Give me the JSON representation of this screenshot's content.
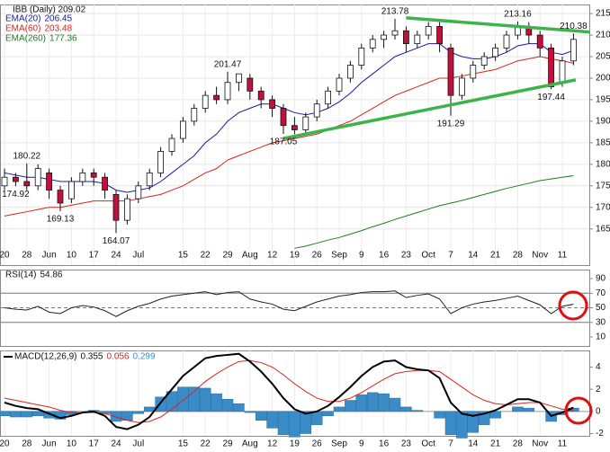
{
  "chart_data": [
    {
      "type": "candlestick",
      "title": "IBB (Daily) 209.02",
      "categories": [
        "20",
        null,
        "28",
        null,
        "Jun",
        null,
        "10",
        null,
        "17",
        null,
        "24",
        null,
        "Jul",
        null,
        null,
        null,
        "15",
        null,
        "22",
        null,
        "29",
        null,
        "Aug",
        null,
        "12",
        null,
        "19",
        null,
        "26",
        null,
        "Sep",
        null,
        "9",
        null,
        "16",
        null,
        "23",
        null,
        "Oct",
        null,
        "7",
        null,
        "14",
        null,
        "21",
        null,
        "28",
        null,
        "Nov",
        null,
        "11",
        null
      ],
      "open": [
        175,
        177,
        176,
        175,
        178,
        174,
        172,
        176,
        178,
        177,
        173,
        167,
        172,
        175,
        178,
        183,
        186,
        190,
        193,
        196,
        195,
        199,
        200,
        197,
        195,
        193,
        189,
        188,
        191,
        194,
        197,
        200,
        203,
        207,
        209,
        210,
        211,
        208,
        210,
        212,
        207,
        196,
        200,
        203,
        205,
        207,
        210,
        212,
        210,
        207,
        199,
        204
      ],
      "high": [
        179,
        178,
        180.22,
        180,
        179,
        175,
        177,
        179,
        179,
        178,
        174,
        173,
        176,
        179,
        184,
        187,
        191,
        194,
        197,
        198,
        201.47,
        201,
        201,
        198,
        196,
        194,
        191,
        192,
        195,
        198,
        201,
        204,
        208,
        210,
        211,
        213.78,
        212,
        211,
        213,
        213,
        208,
        201,
        204,
        206,
        208,
        211,
        213.16,
        213,
        211,
        208,
        205,
        210.38
      ],
      "low": [
        174,
        174.92,
        174,
        174,
        172,
        169.13,
        171,
        175,
        175,
        172,
        164.07,
        166,
        171,
        174,
        177,
        182,
        185,
        189,
        192,
        194,
        194,
        197,
        195,
        193,
        191,
        187.05,
        187,
        187,
        190,
        193,
        196,
        199,
        202,
        206,
        207,
        209,
        206,
        207,
        209,
        206,
        191.29,
        195,
        199,
        202,
        204,
        206,
        209,
        208,
        205,
        197.44,
        198,
        203
      ],
      "close": [
        177,
        176,
        175,
        179,
        174,
        171,
        176,
        178,
        177,
        174,
        167,
        172,
        175,
        178,
        183,
        186,
        190,
        193,
        196,
        195,
        199,
        201,
        197,
        195,
        193,
        189,
        188,
        191,
        194,
        197,
        200,
        203,
        207,
        209,
        210,
        211,
        208,
        210,
        212,
        208,
        196,
        200,
        203,
        205,
        207,
        210,
        212,
        210,
        207,
        198,
        204,
        209
      ],
      "up_color": "#ffffff",
      "down_color": "#c0103c",
      "series": [
        {
          "name": "EMA(20)",
          "color": "#1a1a9c",
          "values": [
            178,
            177.5,
            177,
            177,
            176.5,
            176,
            176,
            176,
            176,
            175.5,
            174,
            173.5,
            174,
            174.5,
            176,
            178,
            180,
            182,
            185,
            187,
            190,
            192,
            193,
            194,
            194,
            193,
            192,
            191.5,
            192,
            193,
            194.5,
            196.5,
            199,
            201,
            203,
            205,
            206,
            207,
            208,
            208,
            206,
            205,
            204.5,
            204.5,
            205,
            206,
            207.5,
            208,
            208,
            206,
            205.5,
            206.45
          ]
        },
        {
          "name": "EMA(60)",
          "color": "#e0201c",
          "values": [
            168,
            168.5,
            169,
            169.5,
            170,
            170,
            170.5,
            171,
            171.5,
            171.5,
            171.5,
            171.5,
            172,
            172.5,
            173,
            174,
            175,
            176.5,
            178,
            179,
            181,
            182,
            183,
            184,
            185,
            185.5,
            186,
            186.5,
            187,
            188,
            189,
            190,
            191.5,
            193,
            194.5,
            196,
            197,
            198,
            199,
            200,
            200,
            200.5,
            201,
            201.5,
            202,
            203,
            204,
            204.5,
            205,
            204.5,
            204,
            203.48
          ]
        },
        {
          "name": "EMA(260)",
          "color": "#1e7d1e",
          "values": [
            null,
            null,
            null,
            null,
            null,
            null,
            null,
            null,
            null,
            null,
            null,
            null,
            null,
            null,
            null,
            null,
            null,
            null,
            null,
            null,
            null,
            null,
            null,
            null,
            null,
            null,
            160.5,
            161,
            161.7,
            162.4,
            163,
            163.8,
            164.6,
            165.5,
            166.3,
            167.2,
            168,
            168.8,
            169.6,
            170.4,
            171,
            171.6,
            172.3,
            173,
            173.7,
            174.4,
            175,
            175.6,
            176.2,
            176.6,
            177,
            177.36
          ]
        }
      ],
      "annotations": [
        {
          "index": 1,
          "value": 174.92
        },
        {
          "index": 2,
          "value": 180.22
        },
        {
          "index": 5,
          "value": 169.13
        },
        {
          "index": 10,
          "value": 164.07
        },
        {
          "index": 20,
          "value": 201.47
        },
        {
          "index": 25,
          "value": 187.05
        },
        {
          "index": 35,
          "value": 213.78
        },
        {
          "index": 40,
          "value": 191.29
        },
        {
          "index": 46,
          "value": 213.16
        },
        {
          "index": 49,
          "value": 197.44
        },
        {
          "index": 51,
          "value": 210.38
        }
      ],
      "trendlines": [
        {
          "color": "#3cb44b",
          "x": [
            25,
            51.2
          ],
          "y": [
            186,
            199.6
          ]
        },
        {
          "color": "#3cb44b",
          "x": [
            36,
            53
          ],
          "y": [
            214,
            210.6
          ]
        }
      ],
      "ylim": [
        156.6,
        217.1
      ],
      "yticks": [
        165,
        170,
        175,
        180,
        185,
        190,
        195,
        200,
        205,
        210,
        215
      ],
      "grid": true
    },
    {
      "type": "line",
      "series": [
        {
          "name": "RSI(14)",
          "color": "#222222",
          "values": [
            50,
            48,
            47,
            52,
            44,
            42,
            50,
            53,
            51,
            46,
            38,
            46,
            52,
            56,
            62,
            66,
            68,
            70,
            72,
            68,
            71,
            72,
            62,
            58,
            55,
            48,
            46,
            52,
            58,
            62,
            66,
            68,
            71,
            72,
            72,
            73,
            64,
            67,
            69,
            62,
            42,
            50,
            55,
            58,
            60,
            63,
            66,
            60,
            54,
            42,
            52,
            54.86
          ]
        }
      ],
      "levels": [
        30,
        50,
        70
      ],
      "ylim": [
        -2.3,
        102.3
      ],
      "yticks": [
        10,
        30,
        50,
        70,
        90
      ]
    },
    {
      "type": "macd",
      "categories": [
        "20",
        null,
        "28",
        null,
        "Jun",
        null,
        "10",
        null,
        "17",
        null,
        "24",
        null,
        "Jul",
        null,
        null,
        null,
        "15",
        null,
        "22",
        null,
        "29",
        null,
        "Aug",
        null,
        "12",
        null,
        "19",
        null,
        "26",
        null,
        "Sep",
        null,
        "9",
        null,
        "16",
        null,
        "23",
        null,
        "Oct",
        null,
        "7",
        null,
        "14",
        null,
        "21",
        null,
        "28",
        null,
        "Nov",
        null,
        "11",
        null
      ],
      "series": [
        {
          "name": "MACD(12,26,9)",
          "color": "#000000",
          "values": [
            0.8,
            0.5,
            0.3,
            0.2,
            -0.2,
            -0.6,
            -0.4,
            -0.1,
            0,
            -0.4,
            -1.4,
            -1.6,
            -1.2,
            -0.5,
            0.8,
            2,
            3.2,
            4,
            4.8,
            5,
            5.1,
            5.2,
            4.5,
            3.6,
            2.5,
            1.2,
            0.2,
            -0.2,
            0,
            0.5,
            1.3,
            2.2,
            3.2,
            4,
            4.5,
            4.6,
            4,
            3.8,
            3.7,
            3,
            0.8,
            -0.2,
            -0.4,
            -0.2,
            0.1,
            0.6,
            1.1,
            1.1,
            0.8,
            -0.4,
            -0.1,
            0.355
          ]
        },
        {
          "color": "#e0201c",
          "values": [
            1.2,
            1,
            0.8,
            0.6,
            0.4,
            0.1,
            -0.1,
            -0.1,
            -0.1,
            -0.2,
            -0.5,
            -0.8,
            -1,
            -0.9,
            -0.5,
            0.2,
            1,
            1.8,
            2.7,
            3.4,
            4,
            4.5,
            4.6,
            4.4,
            4,
            3.3,
            2.5,
            1.8,
            1.2,
            0.9,
            0.9,
            1.2,
            1.7,
            2.3,
            2.9,
            3.4,
            3.6,
            3.7,
            3.7,
            3.6,
            2.9,
            2.2,
            1.5,
            1,
            0.7,
            0.6,
            0.7,
            0.8,
            0.8,
            0.5,
            0.2,
            0.056
          ]
        },
        {
          "color": "#3a8cc8",
          "values": [
            -0.4,
            -0.5,
            -0.5,
            -0.4,
            -0.6,
            -0.7,
            -0.3,
            0,
            0.1,
            -0.2,
            -0.9,
            -0.8,
            -0.2,
            0.4,
            1.3,
            1.8,
            2.2,
            2.2,
            2.1,
            1.6,
            1.1,
            0.7,
            -0.1,
            -0.8,
            -1.5,
            -2.1,
            -2.3,
            -2,
            -1.2,
            -0.4,
            0.4,
            1,
            1.5,
            1.7,
            1.6,
            1.2,
            0.4,
            0.1,
            0,
            -0.6,
            -2.1,
            -2.4,
            -1.9,
            -1.2,
            -0.6,
            0,
            0.4,
            0.3,
            0,
            -0.9,
            -0.3,
            0.299
          ]
        }
      ],
      "ylim": [
        -2.2,
        5.5
      ],
      "yticks": [
        -2,
        0,
        2,
        4
      ]
    }
  ]
}
